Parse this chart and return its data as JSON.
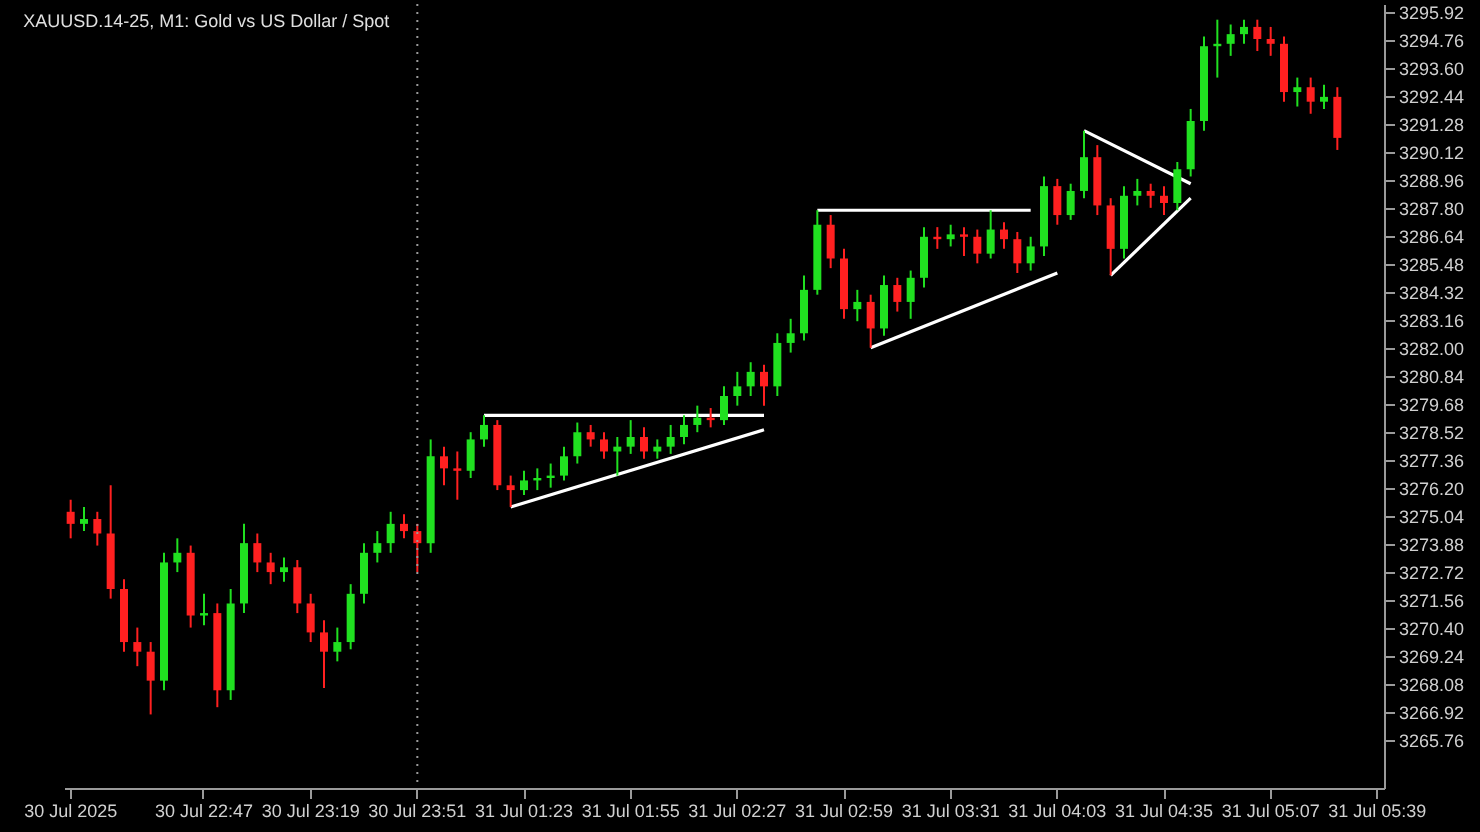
{
  "chart_data": {
    "type": "candlestick",
    "title": "XAUUSD.14-25, M1:  Gold vs US Dollar / Spot",
    "categories": [
      "30 Jul 2025",
      null,
      null,
      null,
      null,
      null,
      null,
      null,
      null,
      null,
      "30 Jul 22:47",
      null,
      null,
      null,
      null,
      null,
      null,
      null,
      "30 Jul 23:19",
      null,
      null,
      null,
      null,
      null,
      null,
      null,
      "30 Jul 23:51",
      null,
      null,
      null,
      null,
      null,
      null,
      null,
      "31 Jul 01:23",
      null,
      null,
      null,
      null,
      null,
      null,
      null,
      "31 Jul 01:55",
      null,
      null,
      null,
      null,
      null,
      null,
      null,
      "31 Jul 02:27",
      null,
      null,
      null,
      null,
      null,
      null,
      null,
      "31 Jul 02:59",
      null,
      null,
      null,
      null,
      null,
      null,
      null,
      "31 Jul 03:31",
      null,
      null,
      null,
      null,
      null,
      null,
      null,
      "31 Jul 04:03",
      null,
      null,
      null,
      null,
      null,
      null,
      null,
      "31 Jul 04:35",
      null,
      null,
      null,
      null,
      null,
      null,
      null,
      "31 Jul 05:07",
      null,
      null,
      null,
      null,
      null,
      null,
      null,
      "31 Jul 05:39"
    ],
    "ohlc": [
      [
        3275.2,
        3275.7,
        3274.1,
        3274.7
      ],
      [
        3274.7,
        3275.4,
        3274.4,
        3274.9
      ],
      [
        3274.9,
        3275.2,
        3273.8,
        3274.3
      ],
      [
        3274.3,
        3276.3,
        3271.6,
        3272.0
      ],
      [
        3272.0,
        3272.4,
        3269.4,
        3269.8
      ],
      [
        3269.8,
        3270.4,
        3268.8,
        3269.4
      ],
      [
        3269.4,
        3269.8,
        3266.8,
        3268.2
      ],
      [
        3268.2,
        3273.5,
        3267.8,
        3273.1
      ],
      [
        3273.1,
        3274.1,
        3272.7,
        3273.5
      ],
      [
        3273.5,
        3273.8,
        3270.4,
        3270.9
      ],
      [
        3270.9,
        3271.8,
        3270.5,
        3271.0
      ],
      [
        3271.0,
        3271.4,
        3267.1,
        3267.8
      ],
      [
        3267.8,
        3272.0,
        3267.4,
        3271.4
      ],
      [
        3271.4,
        3274.7,
        3271.0,
        3273.9
      ],
      [
        3273.9,
        3274.3,
        3272.7,
        3273.1
      ],
      [
        3273.1,
        3273.5,
        3272.2,
        3272.7
      ],
      [
        3272.7,
        3273.3,
        3272.3,
        3272.9
      ],
      [
        3272.9,
        3273.2,
        3271.0,
        3271.4
      ],
      [
        3271.4,
        3271.8,
        3269.8,
        3270.2
      ],
      [
        3270.2,
        3270.7,
        3267.9,
        3269.4
      ],
      [
        3269.4,
        3270.4,
        3269.0,
        3269.8
      ],
      [
        3269.8,
        3272.2,
        3269.5,
        3271.8
      ],
      [
        3271.8,
        3273.9,
        3271.4,
        3273.5
      ],
      [
        3273.5,
        3274.4,
        3273.1,
        3273.9
      ],
      [
        3273.9,
        3275.2,
        3273.5,
        3274.7
      ],
      [
        3274.7,
        3275.1,
        3274.1,
        3274.4
      ],
      [
        3274.4,
        3274.7,
        3272.7,
        3273.9
      ],
      [
        3273.9,
        3278.2,
        3273.5,
        3277.5
      ],
      [
        3277.5,
        3277.9,
        3276.3,
        3277.0
      ],
      [
        3277.0,
        3277.7,
        3275.7,
        3276.9
      ],
      [
        3276.9,
        3278.5,
        3276.6,
        3278.2
      ],
      [
        3278.2,
        3279.2,
        3277.9,
        3278.8
      ],
      [
        3278.8,
        3279.0,
        3276.1,
        3276.3
      ],
      [
        3276.3,
        3276.7,
        3275.4,
        3276.1
      ],
      [
        3276.1,
        3276.9,
        3275.9,
        3276.5
      ],
      [
        3276.5,
        3277.0,
        3276.1,
        3276.6
      ],
      [
        3276.6,
        3277.2,
        3276.2,
        3276.7
      ],
      [
        3276.7,
        3277.9,
        3276.5,
        3277.5
      ],
      [
        3277.5,
        3278.9,
        3277.2,
        3278.5
      ],
      [
        3278.5,
        3278.8,
        3277.9,
        3278.2
      ],
      [
        3278.2,
        3278.5,
        3277.4,
        3277.7
      ],
      [
        3277.7,
        3278.3,
        3276.7,
        3277.9
      ],
      [
        3277.9,
        3279.0,
        3277.6,
        3278.3
      ],
      [
        3278.3,
        3278.7,
        3277.4,
        3277.7
      ],
      [
        3277.7,
        3278.2,
        3277.4,
        3277.9
      ],
      [
        3277.9,
        3278.8,
        3277.6,
        3278.3
      ],
      [
        3278.3,
        3279.2,
        3278.0,
        3278.8
      ],
      [
        3278.8,
        3279.6,
        3278.5,
        3279.1
      ],
      [
        3279.1,
        3279.5,
        3278.7,
        3279.0
      ],
      [
        3279.0,
        3280.4,
        3278.8,
        3280.0
      ],
      [
        3280.0,
        3281.0,
        3279.6,
        3280.4
      ],
      [
        3280.4,
        3281.4,
        3280.0,
        3281.0
      ],
      [
        3281.0,
        3281.3,
        3279.6,
        3280.4
      ],
      [
        3280.4,
        3282.6,
        3280.0,
        3282.2
      ],
      [
        3282.2,
        3283.2,
        3281.8,
        3282.6
      ],
      [
        3282.6,
        3285.0,
        3282.3,
        3284.4
      ],
      [
        3284.4,
        3287.7,
        3284.2,
        3287.1
      ],
      [
        3287.1,
        3287.5,
        3285.3,
        3285.7
      ],
      [
        3285.7,
        3286.1,
        3283.2,
        3283.6
      ],
      [
        3283.6,
        3284.4,
        3283.1,
        3283.9
      ],
      [
        3283.9,
        3284.2,
        3282.0,
        3282.8
      ],
      [
        3282.8,
        3285.0,
        3282.5,
        3284.6
      ],
      [
        3284.6,
        3284.9,
        3283.5,
        3283.9
      ],
      [
        3283.9,
        3285.2,
        3283.2,
        3284.9
      ],
      [
        3284.9,
        3287.0,
        3284.5,
        3286.6
      ],
      [
        3286.6,
        3287.0,
        3286.1,
        3286.5
      ],
      [
        3286.5,
        3287.1,
        3286.2,
        3286.7
      ],
      [
        3286.7,
        3287.0,
        3285.8,
        3286.6
      ],
      [
        3286.6,
        3286.9,
        3285.5,
        3285.9
      ],
      [
        3285.9,
        3287.7,
        3285.7,
        3286.9
      ],
      [
        3286.9,
        3287.2,
        3286.1,
        3286.5
      ],
      [
        3286.5,
        3286.8,
        3285.1,
        3285.5
      ],
      [
        3285.5,
        3286.6,
        3285.2,
        3286.2
      ],
      [
        3286.2,
        3289.1,
        3285.8,
        3288.7
      ],
      [
        3288.7,
        3289.0,
        3287.1,
        3287.5
      ],
      [
        3287.5,
        3288.8,
        3287.3,
        3288.5
      ],
      [
        3288.5,
        3291.0,
        3288.2,
        3289.9
      ],
      [
        3289.9,
        3290.4,
        3287.5,
        3287.9
      ],
      [
        3287.9,
        3288.2,
        3285.0,
        3286.1
      ],
      [
        3286.1,
        3288.7,
        3285.7,
        3288.3
      ],
      [
        3288.3,
        3289.0,
        3287.9,
        3288.5
      ],
      [
        3288.5,
        3288.8,
        3287.8,
        3288.3
      ],
      [
        3288.3,
        3288.7,
        3287.5,
        3288.0
      ],
      [
        3288.0,
        3289.7,
        3287.7,
        3289.4
      ],
      [
        3289.4,
        3291.9,
        3289.1,
        3291.4
      ],
      [
        3291.4,
        3294.9,
        3291.0,
        3294.5
      ],
      [
        3294.5,
        3295.6,
        3293.2,
        3294.6
      ],
      [
        3294.6,
        3295.4,
        3294.1,
        3295.0
      ],
      [
        3295.0,
        3295.6,
        3294.6,
        3295.3
      ],
      [
        3295.3,
        3295.6,
        3294.3,
        3294.8
      ],
      [
        3294.8,
        3295.3,
        3294.1,
        3294.6
      ],
      [
        3294.6,
        3294.9,
        3292.2,
        3292.6
      ],
      [
        3292.6,
        3293.2,
        3292.0,
        3292.8
      ],
      [
        3292.8,
        3293.2,
        3291.7,
        3292.2
      ],
      [
        3292.2,
        3292.9,
        3291.9,
        3292.4
      ],
      [
        3292.4,
        3292.8,
        3290.2,
        3290.7
      ],
      null,
      null,
      null
    ],
    "colors": [
      "#ff2020",
      "#20e020",
      "#ff2020",
      "#ff2020",
      "#ff2020",
      "#ff2020",
      "#ff2020",
      "#20e020",
      "#20e020",
      "#ff2020",
      "#20e020",
      "#ff2020",
      "#20e020",
      "#20e020",
      "#ff2020",
      "#ff2020",
      "#20e020",
      "#ff2020",
      "#ff2020",
      "#ff2020",
      "#20e020",
      "#20e020",
      "#20e020",
      "#20e020",
      "#20e020",
      "#ff2020",
      "#ff2020",
      "#20e020",
      "#ff2020",
      "#ff2020",
      "#20e020",
      "#20e020",
      "#ff2020",
      "#ff2020",
      "#20e020",
      "#20e020",
      "#20e020",
      "#20e020",
      "#20e020",
      "#ff2020",
      "#ff2020",
      "#20e020",
      "#20e020",
      "#ff2020",
      "#20e020",
      "#20e020",
      "#20e020",
      "#20e020",
      "#ff2020",
      "#20e020",
      "#20e020",
      "#20e020",
      "#ff2020",
      "#20e020",
      "#20e020",
      "#20e020",
      "#20e020",
      "#ff2020",
      "#ff2020",
      "#20e020",
      "#ff2020",
      "#20e020",
      "#ff2020",
      "#20e020",
      "#20e020",
      "#ff2020",
      "#20e020",
      "#ff2020",
      "#ff2020",
      "#20e020",
      "#ff2020",
      "#ff2020",
      "#20e020",
      "#20e020",
      "#ff2020",
      "#20e020",
      "#20e020",
      "#ff2020",
      "#ff2020",
      "#20e020",
      "#20e020",
      "#ff2020",
      "#ff2020",
      "#20e020",
      "#20e020",
      "#20e020",
      "#20e020",
      "#20e020",
      "#20e020",
      "#ff2020",
      "#ff2020",
      "#ff2020",
      "#20e020",
      "#ff2020",
      "#20e020",
      "#ff2020",
      null,
      null,
      null
    ],
    "series": [
      {
        "type": "line",
        "color": "#ffffff",
        "values": [
          null,
          null,
          null,
          null,
          null,
          null,
          null,
          null,
          null,
          null,
          null,
          null,
          null,
          null,
          null,
          null,
          null,
          null,
          null,
          null,
          null,
          null,
          null,
          null,
          null,
          null,
          null,
          null,
          null,
          null,
          null,
          3279.2,
          null,
          null,
          null,
          null,
          null,
          null,
          null,
          null,
          null,
          null,
          null,
          null,
          null,
          null,
          null,
          null,
          null,
          null,
          null,
          null,
          3279.2,
          null,
          null,
          null,
          null,
          null,
          null,
          null,
          null,
          null,
          null,
          null,
          null,
          null,
          null,
          null,
          null,
          null,
          null,
          null,
          null,
          null,
          null,
          null,
          null,
          null,
          null,
          null,
          null,
          null,
          null,
          null,
          null,
          null,
          null,
          null,
          null,
          null,
          null,
          null,
          null,
          null,
          null,
          null,
          null,
          null,
          null
        ]
      },
      {
        "type": "line",
        "color": "#ffffff",
        "values": [
          null,
          null,
          null,
          null,
          null,
          null,
          null,
          null,
          null,
          null,
          null,
          null,
          null,
          null,
          null,
          null,
          null,
          null,
          null,
          null,
          null,
          null,
          null,
          null,
          null,
          null,
          null,
          null,
          null,
          null,
          null,
          null,
          null,
          3275.4,
          null,
          null,
          null,
          null,
          null,
          null,
          null,
          null,
          null,
          null,
          null,
          null,
          null,
          null,
          null,
          null,
          null,
          null,
          3278.6,
          null,
          null,
          null,
          null,
          null,
          null,
          null,
          null,
          null,
          null,
          null,
          null,
          null,
          null,
          null,
          null,
          null,
          null,
          null,
          null,
          null,
          null,
          null,
          null,
          null,
          null,
          null,
          null,
          null,
          null,
          null,
          null,
          null,
          null,
          null,
          null,
          null,
          null,
          null,
          null,
          null,
          null,
          null,
          null,
          null,
          null
        ]
      },
      {
        "type": "line",
        "color": "#ffffff",
        "values": [
          null,
          null,
          null,
          null,
          null,
          null,
          null,
          null,
          null,
          null,
          null,
          null,
          null,
          null,
          null,
          null,
          null,
          null,
          null,
          null,
          null,
          null,
          null,
          null,
          null,
          null,
          null,
          null,
          null,
          null,
          null,
          null,
          null,
          null,
          null,
          null,
          null,
          null,
          null,
          null,
          null,
          null,
          null,
          null,
          null,
          null,
          null,
          null,
          null,
          null,
          null,
          null,
          null,
          null,
          null,
          null,
          3287.7,
          null,
          null,
          null,
          null,
          null,
          null,
          null,
          null,
          null,
          null,
          null,
          null,
          null,
          null,
          null,
          3287.7,
          null,
          null,
          null,
          null,
          null,
          null,
          null,
          null,
          null,
          null,
          null,
          null,
          null,
          null,
          null,
          null,
          null,
          null,
          null,
          null,
          null,
          null,
          null,
          null,
          null,
          null
        ]
      },
      {
        "type": "line",
        "color": "#ffffff",
        "values": [
          null,
          null,
          null,
          null,
          null,
          null,
          null,
          null,
          null,
          null,
          null,
          null,
          null,
          null,
          null,
          null,
          null,
          null,
          null,
          null,
          null,
          null,
          null,
          null,
          null,
          null,
          null,
          null,
          null,
          null,
          null,
          null,
          null,
          null,
          null,
          null,
          null,
          null,
          null,
          null,
          null,
          null,
          null,
          null,
          null,
          null,
          null,
          null,
          null,
          null,
          null,
          null,
          null,
          null,
          null,
          null,
          null,
          null,
          null,
          null,
          3282.0,
          null,
          null,
          null,
          null,
          null,
          null,
          null,
          null,
          null,
          null,
          null,
          null,
          null,
          3285.1,
          null,
          null,
          null,
          null,
          null,
          null,
          null,
          null,
          null,
          null,
          null,
          null,
          null,
          null,
          null,
          null,
          null,
          null,
          null,
          null,
          null,
          null,
          null,
          null
        ]
      },
      {
        "type": "line",
        "color": "#ffffff",
        "values": [
          null,
          null,
          null,
          null,
          null,
          null,
          null,
          null,
          null,
          null,
          null,
          null,
          null,
          null,
          null,
          null,
          null,
          null,
          null,
          null,
          null,
          null,
          null,
          null,
          null,
          null,
          null,
          null,
          null,
          null,
          null,
          null,
          null,
          null,
          null,
          null,
          null,
          null,
          null,
          null,
          null,
          null,
          null,
          null,
          null,
          null,
          null,
          null,
          null,
          null,
          null,
          null,
          null,
          null,
          null,
          null,
          null,
          null,
          null,
          null,
          null,
          null,
          null,
          null,
          null,
          null,
          null,
          null,
          null,
          null,
          null,
          null,
          null,
          null,
          null,
          null,
          3291.0,
          null,
          null,
          null,
          null,
          null,
          null,
          null,
          3288.8,
          null,
          null,
          null,
          null,
          null,
          null,
          null,
          null,
          null,
          null,
          null,
          null,
          null,
          null
        ]
      },
      {
        "type": "line",
        "color": "#ffffff",
        "values": [
          null,
          null,
          null,
          null,
          null,
          null,
          null,
          null,
          null,
          null,
          null,
          null,
          null,
          null,
          null,
          null,
          null,
          null,
          null,
          null,
          null,
          null,
          null,
          null,
          null,
          null,
          null,
          null,
          null,
          null,
          null,
          null,
          null,
          null,
          null,
          null,
          null,
          null,
          null,
          null,
          null,
          null,
          null,
          null,
          null,
          null,
          null,
          null,
          null,
          null,
          null,
          null,
          null,
          null,
          null,
          null,
          null,
          null,
          null,
          null,
          null,
          null,
          null,
          null,
          null,
          null,
          null,
          null,
          null,
          null,
          null,
          null,
          null,
          null,
          null,
          null,
          null,
          null,
          3285.0,
          null,
          null,
          null,
          null,
          null,
          3288.2,
          null,
          null,
          null,
          null,
          null,
          null,
          null,
          null,
          null,
          null,
          null,
          null,
          null,
          null
        ]
      }
    ],
    "ref_lines": [
      {
        "axis": "x",
        "value": "30 Jul 23:51",
        "color": "#9a9a9a",
        "line_style": "dotted"
      }
    ],
    "ylim": [
      3263.75,
      3296.25
    ],
    "yticks": [
      3295.92,
      3294.76,
      {
        "value": 3293.6,
        "label": "3293.60"
      },
      3292.44,
      3291.28,
      3290.12,
      3288.96,
      {
        "value": 3287.8,
        "label": "3287.80"
      },
      3286.64,
      3285.48,
      3284.32,
      3283.16,
      {
        "value": 3282,
        "label": "3282.00"
      },
      3280.84,
      3279.68,
      3278.52,
      3277.36,
      {
        "value": 3276.2,
        "label": "3276.20"
      },
      3275.04,
      3273.88,
      3272.72,
      3271.56,
      {
        "value": 3270.4,
        "label": "3270.40"
      },
      3269.24,
      3268.08,
      3266.92,
      3265.76
    ]
  }
}
